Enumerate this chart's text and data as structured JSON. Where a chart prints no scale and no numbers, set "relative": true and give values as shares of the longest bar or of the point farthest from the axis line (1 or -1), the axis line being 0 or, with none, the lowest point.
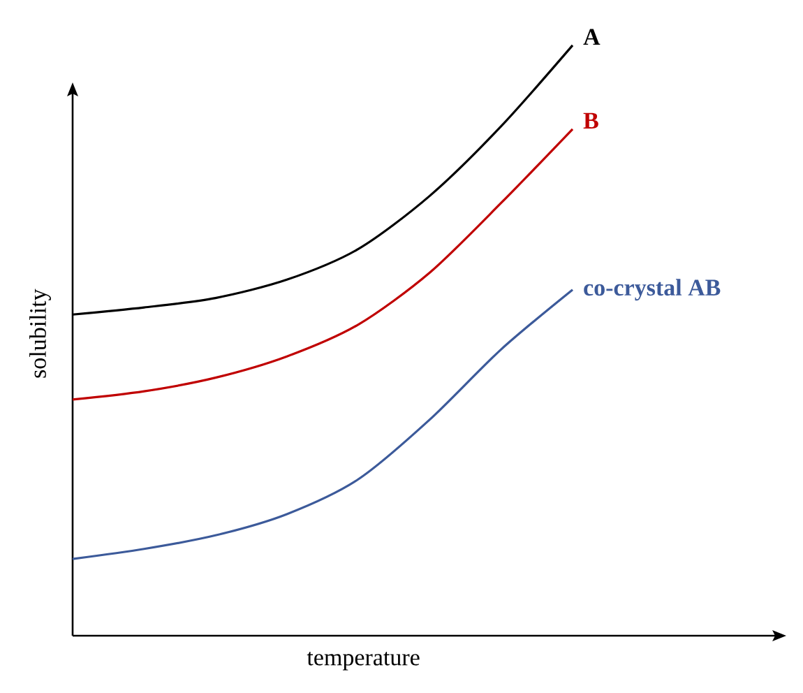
{
  "chart_data": {
    "type": "line",
    "relative": true,
    "xlabel": "temperature",
    "ylabel": "solubility",
    "categories": [
      null,
      null,
      null,
      null,
      null,
      null,
      null,
      null
    ],
    "series": [
      {
        "name": "A",
        "color": "#000000",
        "values": [
          0.544,
          0.556,
          0.572,
          0.603,
          0.655,
          0.745,
          0.863,
          1
        ]
      },
      {
        "name": "B",
        "color": "#c00000",
        "values": [
          0.4,
          0.414,
          0.437,
          0.473,
          0.527,
          0.615,
          0.733,
          0.858
        ]
      },
      {
        "name": "co-crystal  AB",
        "color": "#3c5a9a",
        "values": [
          0.13,
          0.147,
          0.17,
          0.206,
          0.265,
          0.366,
          0.485,
          0.586
        ]
      }
    ]
  }
}
